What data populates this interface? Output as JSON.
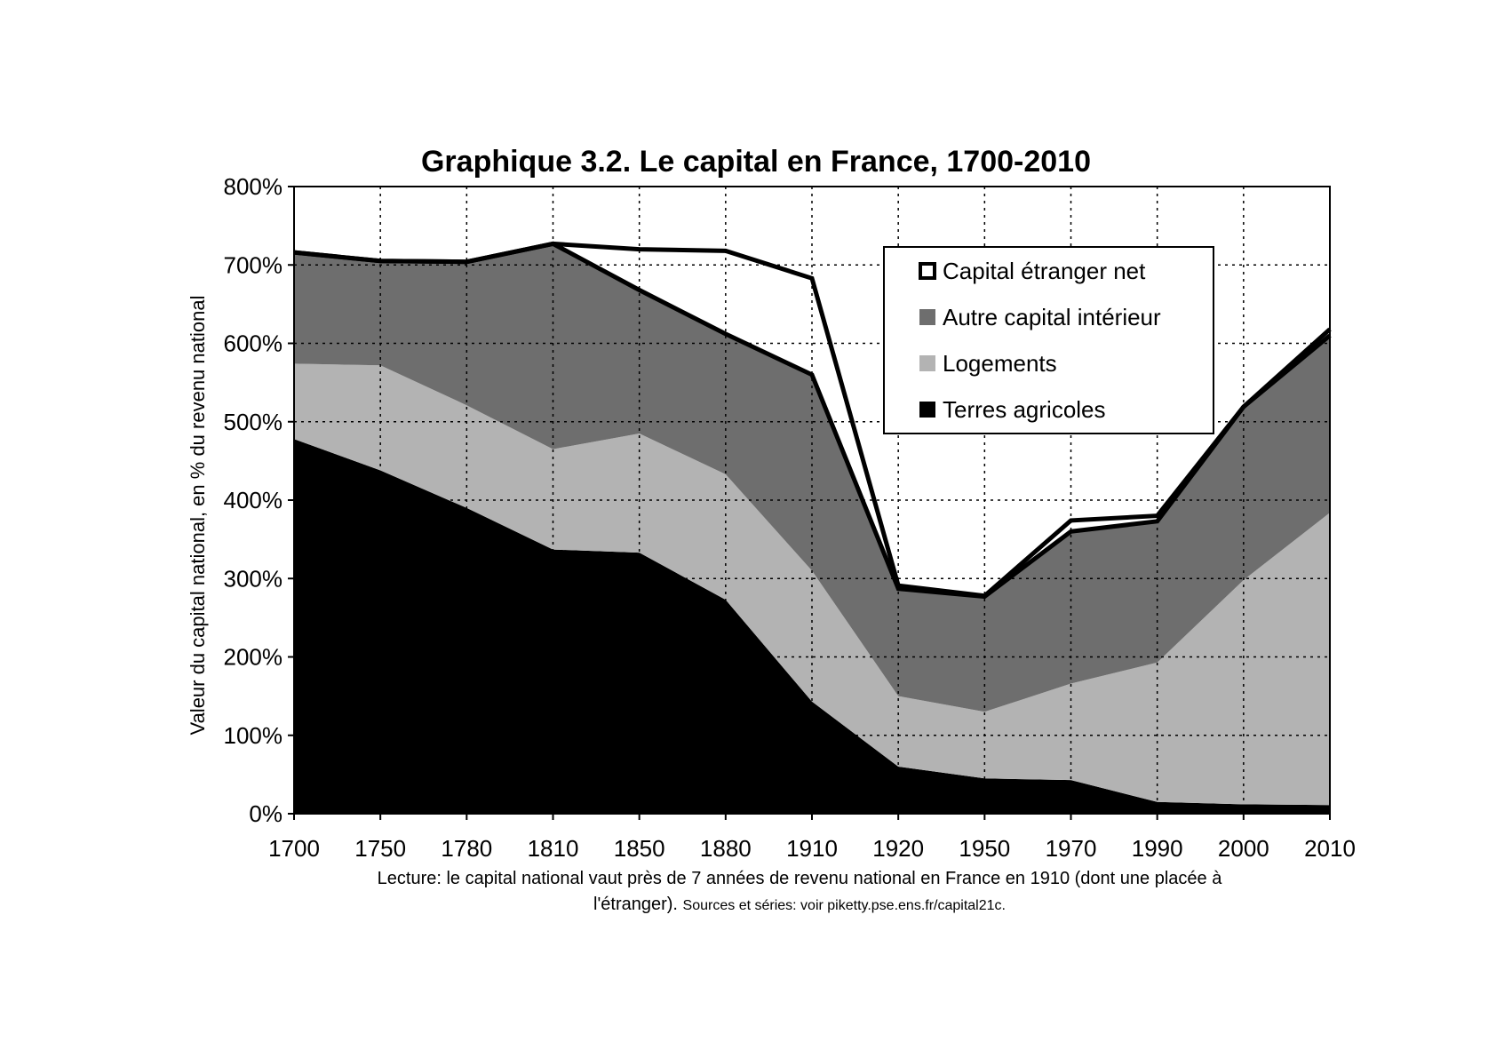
{
  "chart_data": {
    "type": "area",
    "title": "Graphique 3.2. Le capital en France, 1700-2010",
    "ylabel": "Valeur du capital national, en % du revenu national",
    "xlabel": "",
    "categories": [
      "1700",
      "1750",
      "1780",
      "1810",
      "1850",
      "1880",
      "1910",
      "1920",
      "1950",
      "1970",
      "1990",
      "2000",
      "2010"
    ],
    "yticks": [
      "0%",
      "100%",
      "200%",
      "300%",
      "400%",
      "500%",
      "600%",
      "700%",
      "800%"
    ],
    "ylim": [
      0,
      800
    ],
    "stacked": true,
    "grid": true,
    "legend_position": "top-right",
    "series": [
      {
        "name": "Terres agricoles",
        "color": "#000000",
        "values": [
          478,
          438,
          390,
          337,
          333,
          273,
          143,
          60,
          45,
          43,
          15,
          12,
          11
        ]
      },
      {
        "name": "Logements",
        "color": "#b3b3b3",
        "values": [
          96,
          134,
          131,
          128,
          152,
          160,
          167,
          90,
          85,
          123,
          178,
          286,
          373
        ]
      },
      {
        "name": "Autre capital intérieur",
        "color": "#6e6e6e",
        "values": [
          142,
          133,
          183,
          262,
          183,
          179,
          250,
          137,
          147,
          194,
          180,
          221,
          226
        ]
      },
      {
        "name": "Capital étranger net",
        "color": "#ffffff",
        "values": [
          0,
          0,
          0,
          0,
          52,
          106,
          123,
          4,
          1,
          14,
          7,
          0,
          8
        ]
      }
    ],
    "legend": [
      "Capital étranger net",
      "Autre capital intérieur",
      "Logements",
      "Terres agricoles"
    ]
  },
  "caption": {
    "line1": "Lecture: le capital national vaut près de 7 années de revenu national en France en 1910 (dont une placée à",
    "line2_main": "l'étranger). ",
    "line2_sources": "Sources et séries: voir piketty.pse.ens.fr/capital21c."
  }
}
